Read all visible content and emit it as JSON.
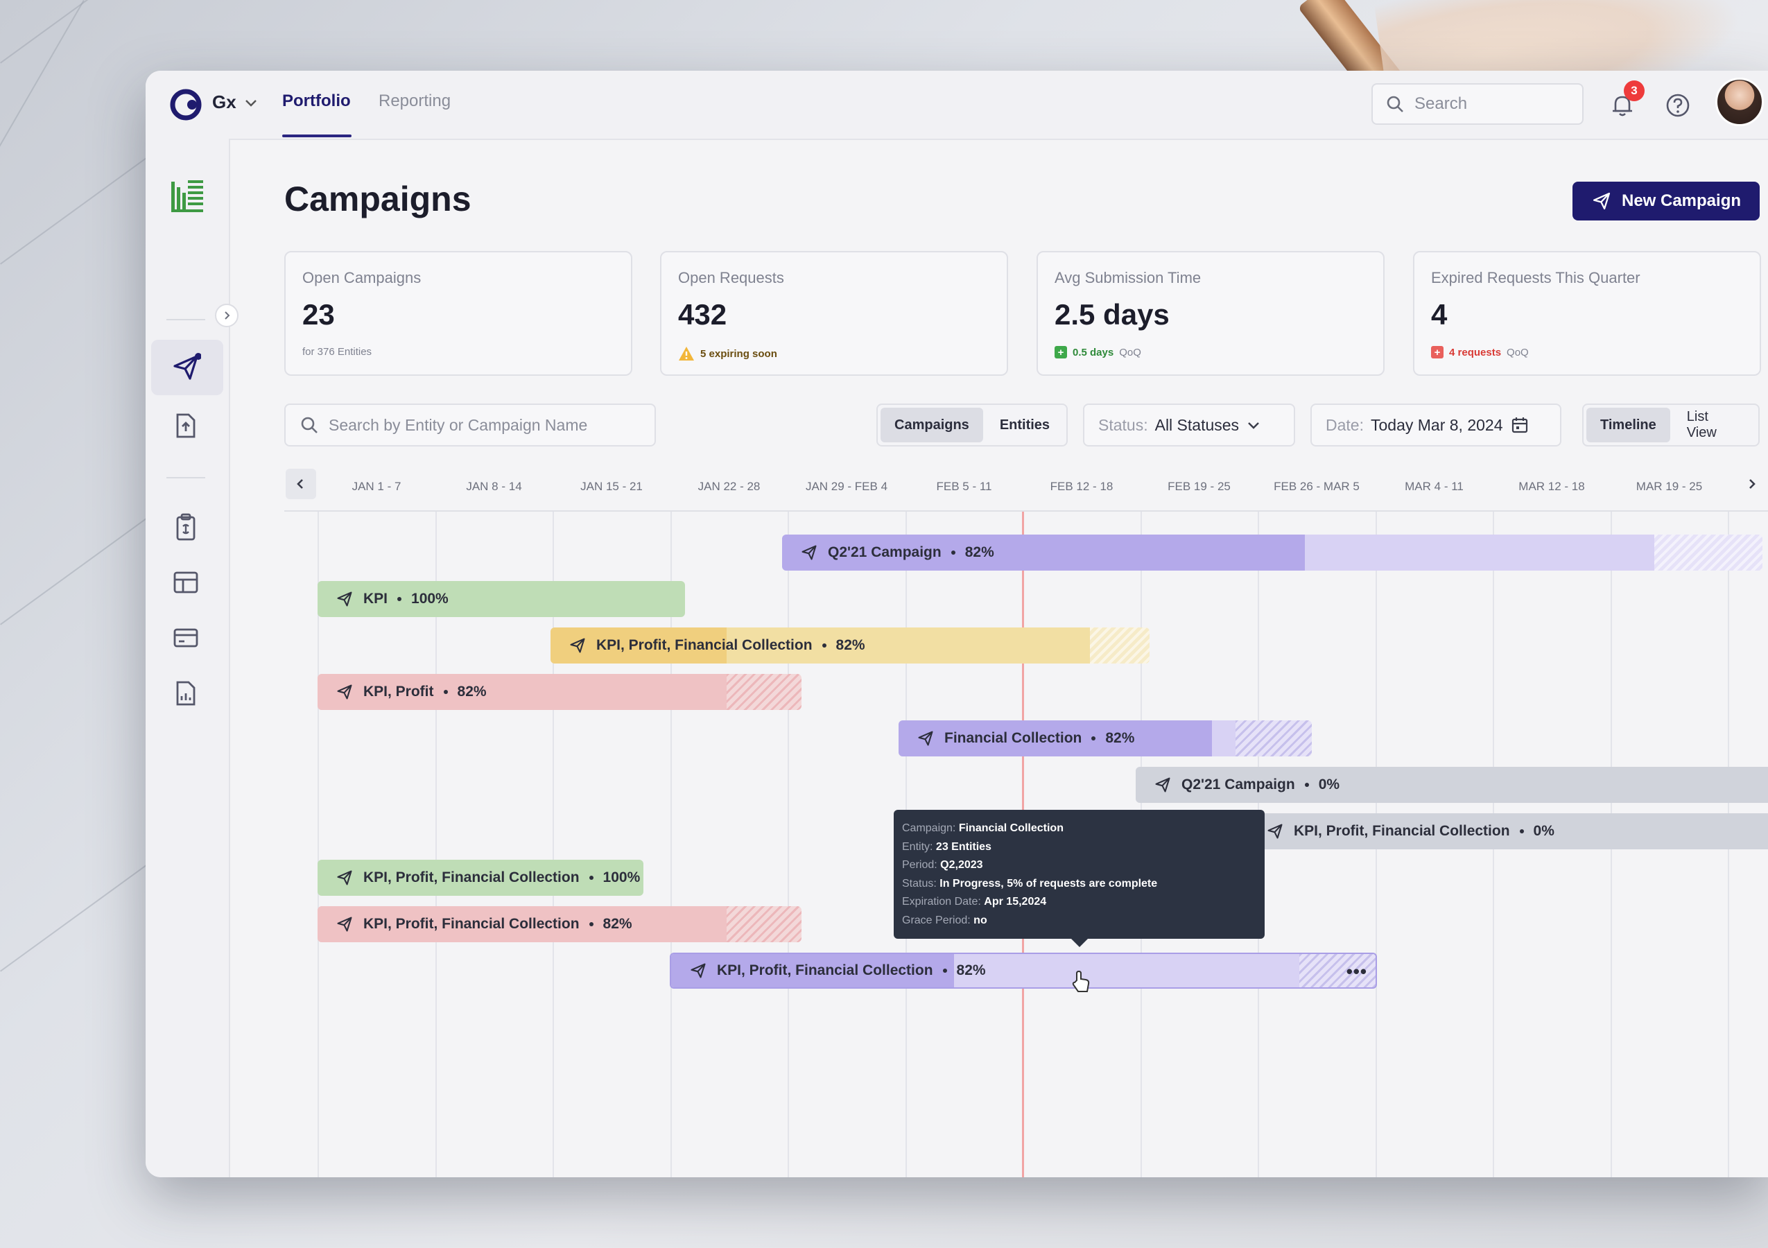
{
  "header": {
    "org_name": "Gx",
    "tabs": [
      {
        "label": "Portfolio"
      },
      {
        "label": "Reporting"
      }
    ],
    "search_placeholder": "Search",
    "notification_count": "3"
  },
  "page": {
    "title": "Campaigns",
    "new_button_label": "New Campaign"
  },
  "stats": [
    {
      "label": "Open Campaigns",
      "value": "23",
      "sub_bold": "",
      "sub": "for 376 Entities"
    },
    {
      "label": "Open Requests",
      "value": "432",
      "sub_bold": "5 expiring soon",
      "sub": ""
    },
    {
      "label": "Avg Submission Time",
      "value": "2.5 days",
      "sub_bold": "0.5 days",
      "sub": "QoQ"
    },
    {
      "label": "Expired Requests This Quarter",
      "value": "4",
      "sub_bold": "4 requests",
      "sub": "QoQ"
    }
  ],
  "filters": {
    "search_placeholder": "Search by Entity or Campaign Name",
    "scope_options": [
      "Campaigns",
      "Entities"
    ],
    "status_label": "Status:",
    "status_value": "All Statuses",
    "date_label": "Date:",
    "date_value": "Today Mar 8, 2024",
    "view_options": [
      "Timeline",
      "List View"
    ]
  },
  "timeline": {
    "weeks": [
      "JAN 1 - 7",
      "JAN 8 - 14",
      "JAN 15 - 21",
      "JAN 22 - 28",
      "JAN 29 - FEB 4",
      "FEB 5 - 11",
      "FEB 12 - 18",
      "FEB 19 - 25",
      "FEB 26 - MAR 5",
      "MAR 4 - 11",
      "MAR 12 - 18",
      "MAR 19 - 25"
    ],
    "bars": [
      {
        "label": "Q2'21 Campaign",
        "pct": "82%",
        "color": "purple"
      },
      {
        "label": "KPI",
        "pct": "100%",
        "color": "green"
      },
      {
        "label": "KPI, Profit, Financial Collection",
        "pct": "82%",
        "color": "yellow"
      },
      {
        "label": "KPI, Profit",
        "pct": "82%",
        "color": "red"
      },
      {
        "label": "Financial Collection",
        "pct": "82%",
        "color": "purple"
      },
      {
        "label": "Q2'21 Campaign",
        "pct": "0%",
        "color": "gray"
      },
      {
        "label": "KPI, Profit, Financial Collection",
        "pct": "0%",
        "color": "gray"
      },
      {
        "label": "KPI, Profit, Financial Collection",
        "pct": "100%",
        "color": "green"
      },
      {
        "label": "KPI, Profit, Financial Collection",
        "pct": "82%",
        "color": "red"
      },
      {
        "label": "KPI, Profit, Financial Collection",
        "pct": "82%",
        "color": "purple"
      }
    ]
  },
  "tooltip": {
    "rows": [
      {
        "k": "Campaign:",
        "v": "Financial Collection"
      },
      {
        "k": "Entity:",
        "v": "23 Entities"
      },
      {
        "k": "Period:",
        "v": "Q2,2023"
      },
      {
        "k": "Status:",
        "v": "In Progress, 5% of requests are complete"
      },
      {
        "k": "Expiration Date:",
        "v": "Apr 15,2024"
      },
      {
        "k": "Grace Period:",
        "v": "no"
      }
    ]
  },
  "colors": {
    "brand": "#1f1b6e",
    "purple": "#b4a9ea",
    "green": "#bfddb6",
    "yellow": "#f2dfa3",
    "red": "#efc2c4",
    "gray": "#d0d3db"
  }
}
